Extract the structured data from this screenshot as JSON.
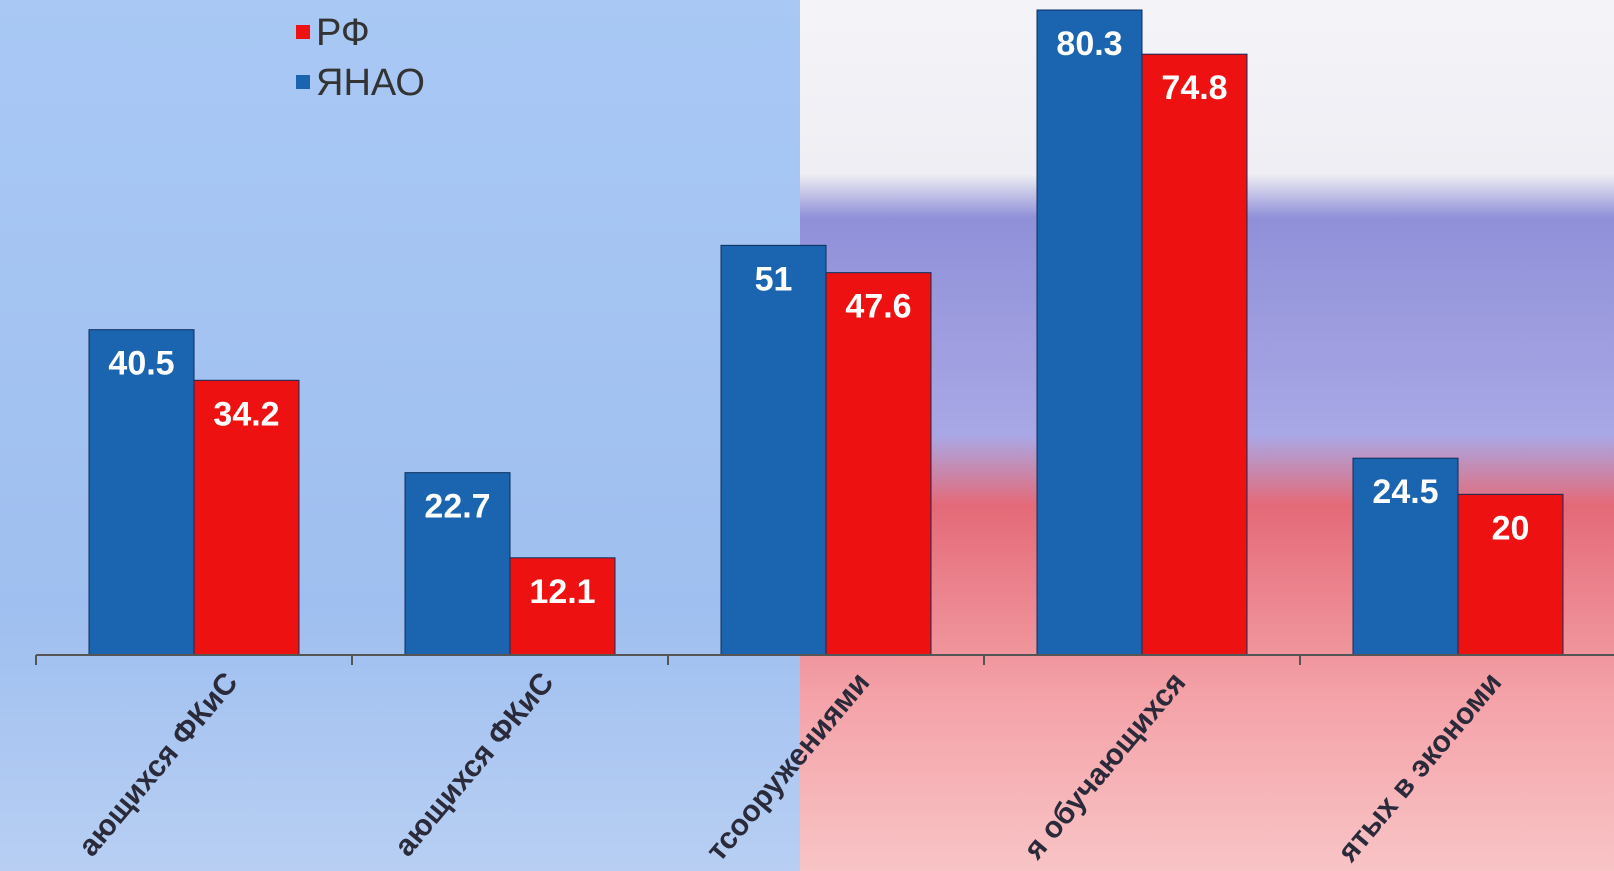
{
  "chart_data": {
    "type": "bar",
    "categories": [
      "ающихся ФКиС",
      "ающихся ФКиС",
      "тсооружениями",
      "я обучающихся",
      "ятых в экономи"
    ],
    "series": [
      {
        "name": "ЯНАО",
        "color": "#1a64b0",
        "values": [
          40.5,
          22.7,
          51,
          80.3,
          24.5
        ]
      },
      {
        "name": "РФ",
        "color": "#ee1111",
        "values": [
          34.2,
          12.1,
          47.6,
          74.8,
          20
        ]
      }
    ],
    "data_labels": true
  }
}
